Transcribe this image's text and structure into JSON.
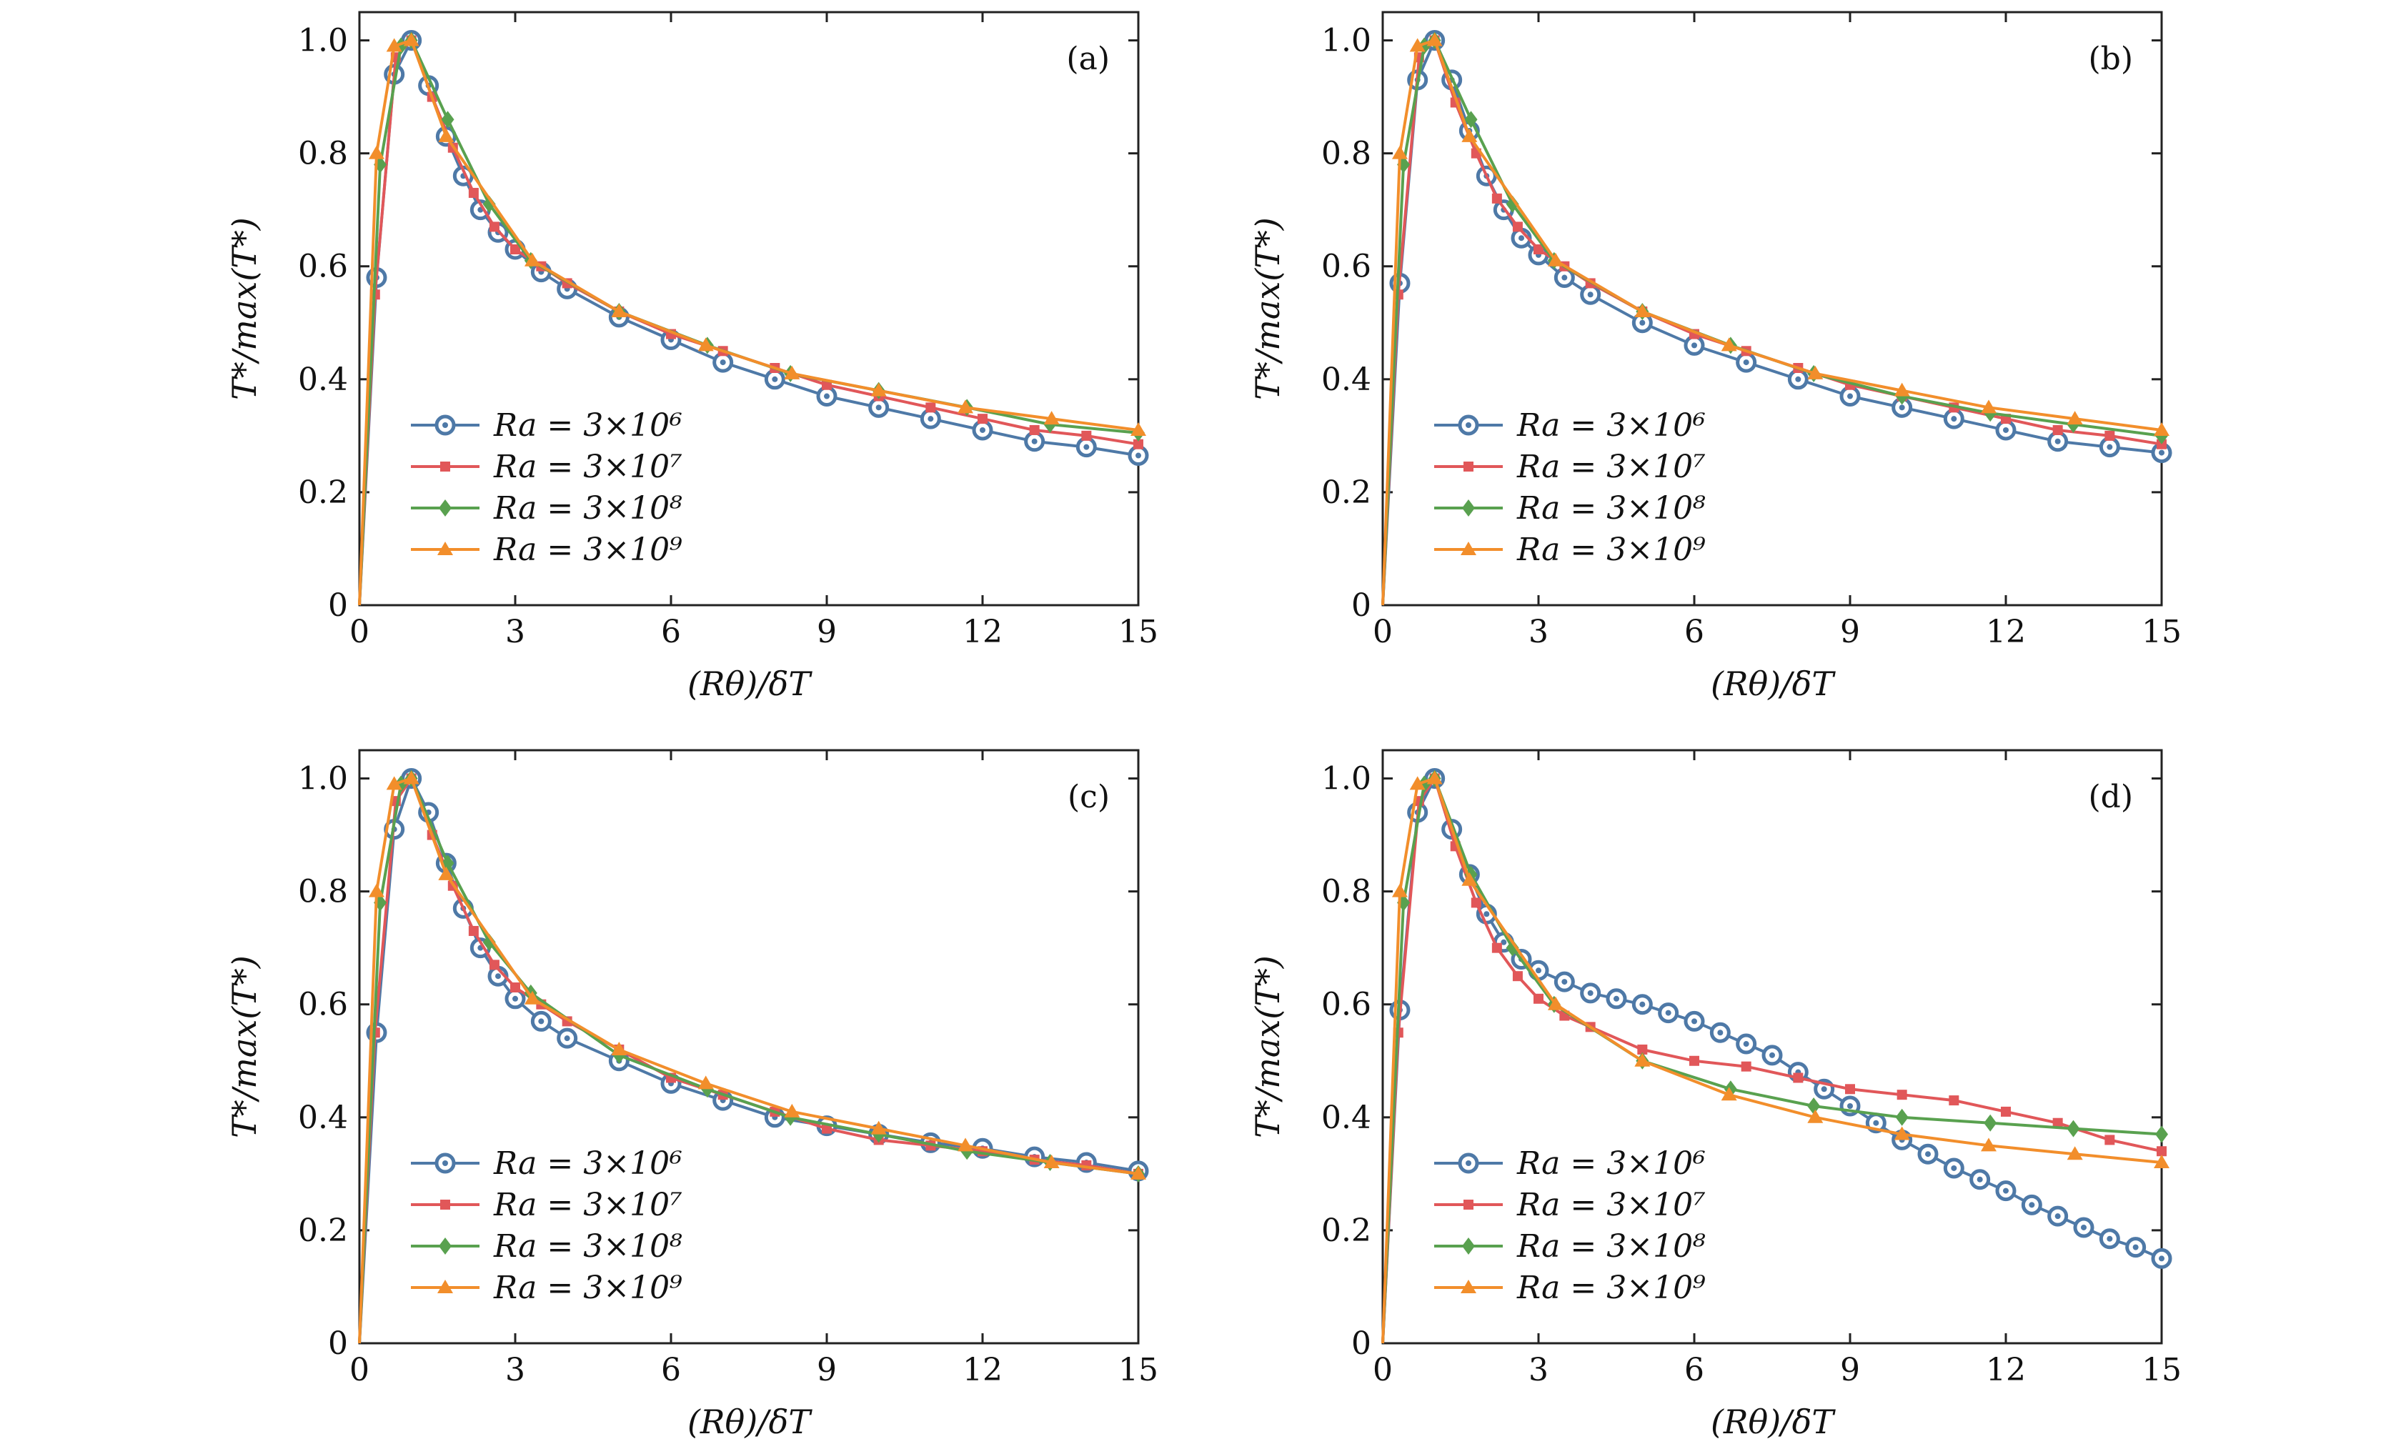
{
  "figure": {
    "labels": {
      "xlabel": "(Rθ)/δT",
      "ylabel": "T*/max(T*)"
    },
    "legend_entries": [
      "Ra = 3×10⁶",
      "Ra = 3×10⁷",
      "Ra = 3×10⁸",
      "Ra = 3×10⁹"
    ]
  },
  "chart_data": [
    {
      "type": "line",
      "panel_label": "(a)",
      "xlabel": "(Rθ)/δT",
      "ylabel": "T*/max(T*)",
      "xlim": [
        0,
        15
      ],
      "ylim": [
        0,
        1.05
      ],
      "xticks": [
        "0",
        "3",
        "6",
        "9",
        "12",
        "15"
      ],
      "yticks": [
        "0",
        "0.2",
        "0.4",
        "0.6",
        "0.8",
        "1.0"
      ],
      "legend_position": "lower-left",
      "grid": false,
      "series": [
        {
          "name": "Ra = 3×10⁶",
          "color": "#4e79a7",
          "marker": "circle",
          "x": [
            0,
            0.33,
            0.67,
            1.0,
            1.33,
            1.67,
            2.0,
            2.33,
            2.67,
            3.0,
            3.5,
            4.0,
            5.0,
            6.0,
            7.0,
            8.0,
            9.0,
            10.0,
            11.0,
            12.0,
            13.0,
            14.0,
            15.0
          ],
          "y": [
            0,
            0.58,
            0.94,
            1.0,
            0.92,
            0.83,
            0.76,
            0.7,
            0.66,
            0.63,
            0.59,
            0.56,
            0.51,
            0.47,
            0.43,
            0.4,
            0.37,
            0.35,
            0.33,
            0.31,
            0.29,
            0.28,
            0.265
          ]
        },
        {
          "name": "Ra = 3×10⁷",
          "color": "#e15759",
          "marker": "square",
          "x": [
            0,
            0.3,
            0.7,
            1.0,
            1.4,
            1.8,
            2.2,
            2.6,
            3.0,
            3.5,
            4.0,
            5.0,
            6.0,
            7.0,
            8.0,
            9.0,
            10.0,
            11.0,
            12.0,
            13.0,
            14.0,
            15.0
          ],
          "y": [
            0,
            0.55,
            0.97,
            1.0,
            0.9,
            0.81,
            0.73,
            0.67,
            0.63,
            0.6,
            0.57,
            0.52,
            0.48,
            0.45,
            0.42,
            0.39,
            0.37,
            0.35,
            0.33,
            0.31,
            0.3,
            0.285
          ]
        },
        {
          "name": "Ra = 3×10⁸",
          "color": "#59a14f",
          "marker": "diamond",
          "x": [
            0,
            0.4,
            0.8,
            1.0,
            1.7,
            2.5,
            3.3,
            5.0,
            6.7,
            8.3,
            10.0,
            11.7,
            13.3,
            15.0
          ],
          "y": [
            0,
            0.78,
            0.99,
            1.0,
            0.86,
            0.71,
            0.61,
            0.52,
            0.46,
            0.41,
            0.38,
            0.35,
            0.32,
            0.305
          ]
        },
        {
          "name": "Ra = 3×10⁹",
          "color": "#f28e2b",
          "marker": "triangle",
          "x": [
            0,
            0.33,
            0.67,
            1.0,
            1.67,
            3.33,
            5.0,
            6.67,
            8.33,
            10.0,
            11.67,
            13.33,
            15.0
          ],
          "y": [
            0,
            0.8,
            0.99,
            1.0,
            0.83,
            0.61,
            0.52,
            0.46,
            0.41,
            0.38,
            0.35,
            0.33,
            0.31
          ]
        }
      ]
    },
    {
      "type": "line",
      "panel_label": "(b)",
      "xlabel": "(Rθ)/δT",
      "ylabel": "T*/max(T*)",
      "xlim": [
        0,
        15
      ],
      "ylim": [
        0,
        1.05
      ],
      "xticks": [
        "0",
        "3",
        "6",
        "9",
        "12",
        "15"
      ],
      "yticks": [
        "0",
        "0.2",
        "0.4",
        "0.6",
        "0.8",
        "1.0"
      ],
      "legend_position": "lower-left",
      "grid": false,
      "series": [
        {
          "name": "Ra = 3×10⁶",
          "color": "#4e79a7",
          "marker": "circle",
          "x": [
            0,
            0.33,
            0.67,
            1.0,
            1.33,
            1.67,
            2.0,
            2.33,
            2.67,
            3.0,
            3.5,
            4.0,
            5.0,
            6.0,
            7.0,
            8.0,
            9.0,
            10.0,
            11.0,
            12.0,
            13.0,
            14.0,
            15.0
          ],
          "y": [
            0,
            0.57,
            0.93,
            1.0,
            0.93,
            0.84,
            0.76,
            0.7,
            0.65,
            0.62,
            0.58,
            0.55,
            0.5,
            0.46,
            0.43,
            0.4,
            0.37,
            0.35,
            0.33,
            0.31,
            0.29,
            0.28,
            0.27
          ]
        },
        {
          "name": "Ra = 3×10⁷",
          "color": "#e15759",
          "marker": "square",
          "x": [
            0,
            0.3,
            0.7,
            1.0,
            1.4,
            1.8,
            2.2,
            2.6,
            3.0,
            3.5,
            4.0,
            5.0,
            6.0,
            7.0,
            8.0,
            9.0,
            10.0,
            11.0,
            12.0,
            13.0,
            14.0,
            15.0
          ],
          "y": [
            0,
            0.55,
            0.97,
            1.0,
            0.89,
            0.8,
            0.72,
            0.67,
            0.63,
            0.6,
            0.57,
            0.52,
            0.48,
            0.45,
            0.42,
            0.39,
            0.37,
            0.35,
            0.33,
            0.31,
            0.3,
            0.285
          ]
        },
        {
          "name": "Ra = 3×10⁸",
          "color": "#59a14f",
          "marker": "diamond",
          "x": [
            0,
            0.4,
            0.8,
            1.0,
            1.7,
            2.5,
            3.3,
            5.0,
            6.7,
            8.3,
            10.0,
            11.7,
            13.3,
            15.0
          ],
          "y": [
            0,
            0.78,
            0.99,
            1.0,
            0.86,
            0.71,
            0.61,
            0.52,
            0.46,
            0.41,
            0.37,
            0.34,
            0.32,
            0.3
          ]
        },
        {
          "name": "Ra = 3×10⁹",
          "color": "#f28e2b",
          "marker": "triangle",
          "x": [
            0,
            0.33,
            0.67,
            1.0,
            1.67,
            3.33,
            5.0,
            6.67,
            8.33,
            10.0,
            11.67,
            13.33,
            15.0
          ],
          "y": [
            0,
            0.8,
            0.99,
            1.0,
            0.83,
            0.61,
            0.52,
            0.46,
            0.41,
            0.38,
            0.35,
            0.33,
            0.31
          ]
        }
      ]
    },
    {
      "type": "line",
      "panel_label": "(c)",
      "xlabel": "(Rθ)/δT",
      "ylabel": "T*/max(T*)",
      "xlim": [
        0,
        15
      ],
      "ylim": [
        0,
        1.05
      ],
      "xticks": [
        "0",
        "3",
        "6",
        "9",
        "12",
        "15"
      ],
      "yticks": [
        "0",
        "0.2",
        "0.4",
        "0.6",
        "0.8",
        "1.0"
      ],
      "legend_position": "lower-left",
      "grid": false,
      "series": [
        {
          "name": "Ra = 3×10⁶",
          "color": "#4e79a7",
          "marker": "circle",
          "x": [
            0,
            0.33,
            0.67,
            1.0,
            1.33,
            1.67,
            2.0,
            2.33,
            2.67,
            3.0,
            3.5,
            4.0,
            5.0,
            6.0,
            7.0,
            8.0,
            9.0,
            10.0,
            11.0,
            12.0,
            13.0,
            14.0,
            15.0
          ],
          "y": [
            0,
            0.55,
            0.91,
            1.0,
            0.94,
            0.85,
            0.77,
            0.7,
            0.65,
            0.61,
            0.57,
            0.54,
            0.5,
            0.46,
            0.43,
            0.4,
            0.385,
            0.37,
            0.355,
            0.345,
            0.33,
            0.32,
            0.305
          ]
        },
        {
          "name": "Ra = 3×10⁷",
          "color": "#e15759",
          "marker": "square",
          "x": [
            0,
            0.3,
            0.7,
            1.0,
            1.4,
            1.8,
            2.2,
            2.6,
            3.0,
            3.5,
            4.0,
            5.0,
            6.0,
            7.0,
            8.0,
            9.0,
            10.0,
            11.0,
            12.0,
            13.0,
            14.0,
            15.0
          ],
          "y": [
            0,
            0.55,
            0.96,
            1.0,
            0.9,
            0.81,
            0.73,
            0.67,
            0.63,
            0.6,
            0.57,
            0.52,
            0.47,
            0.44,
            0.41,
            0.38,
            0.36,
            0.35,
            0.34,
            0.325,
            0.315,
            0.3
          ]
        },
        {
          "name": "Ra = 3×10⁸",
          "color": "#59a14f",
          "marker": "diamond",
          "x": [
            0,
            0.4,
            0.8,
            1.0,
            1.7,
            2.5,
            3.3,
            5.0,
            6.7,
            8.3,
            10.0,
            11.7,
            13.3,
            15.0
          ],
          "y": [
            0,
            0.78,
            0.99,
            1.0,
            0.85,
            0.71,
            0.62,
            0.51,
            0.45,
            0.4,
            0.37,
            0.34,
            0.32,
            0.3
          ]
        },
        {
          "name": "Ra = 3×10⁹",
          "color": "#f28e2b",
          "marker": "triangle",
          "x": [
            0,
            0.33,
            0.67,
            1.0,
            1.67,
            3.33,
            5.0,
            6.67,
            8.33,
            10.0,
            11.67,
            13.33,
            15.0
          ],
          "y": [
            0,
            0.8,
            0.99,
            1.0,
            0.83,
            0.61,
            0.52,
            0.46,
            0.41,
            0.38,
            0.35,
            0.32,
            0.3
          ]
        }
      ]
    },
    {
      "type": "line",
      "panel_label": "(d)",
      "xlabel": "(Rθ)/δT",
      "ylabel": "T*/max(T*)",
      "xlim": [
        0,
        15
      ],
      "ylim": [
        0,
        1.05
      ],
      "xticks": [
        "0",
        "3",
        "6",
        "9",
        "12",
        "15"
      ],
      "yticks": [
        "0",
        "0.2",
        "0.4",
        "0.6",
        "0.8",
        "1.0"
      ],
      "legend_position": "lower-left",
      "grid": false,
      "series": [
        {
          "name": "Ra = 3×10⁶",
          "color": "#4e79a7",
          "marker": "circle",
          "x": [
            0,
            0.33,
            0.67,
            1.0,
            1.33,
            1.67,
            2.0,
            2.33,
            2.67,
            3.0,
            3.5,
            4.0,
            4.5,
            5.0,
            5.5,
            6.0,
            6.5,
            7.0,
            7.5,
            8.0,
            8.5,
            9.0,
            9.5,
            10.0,
            10.5,
            11.0,
            11.5,
            12.0,
            12.5,
            13.0,
            13.5,
            14.0,
            14.5,
            15.0
          ],
          "y": [
            0,
            0.59,
            0.94,
            1.0,
            0.91,
            0.83,
            0.76,
            0.71,
            0.68,
            0.66,
            0.64,
            0.62,
            0.61,
            0.6,
            0.585,
            0.57,
            0.55,
            0.53,
            0.51,
            0.48,
            0.45,
            0.42,
            0.39,
            0.36,
            0.335,
            0.31,
            0.29,
            0.27,
            0.245,
            0.225,
            0.205,
            0.185,
            0.17,
            0.15
          ]
        },
        {
          "name": "Ra = 3×10⁷",
          "color": "#e15759",
          "marker": "square",
          "x": [
            0,
            0.3,
            0.7,
            1.0,
            1.4,
            1.8,
            2.2,
            2.6,
            3.0,
            3.5,
            4.0,
            5.0,
            6.0,
            7.0,
            8.0,
            9.0,
            10.0,
            11.0,
            12.0,
            13.0,
            14.0,
            15.0
          ],
          "y": [
            0,
            0.55,
            0.96,
            1.0,
            0.88,
            0.78,
            0.7,
            0.65,
            0.61,
            0.58,
            0.56,
            0.52,
            0.5,
            0.49,
            0.47,
            0.45,
            0.44,
            0.43,
            0.41,
            0.39,
            0.36,
            0.34
          ]
        },
        {
          "name": "Ra = 3×10⁸",
          "color": "#59a14f",
          "marker": "diamond",
          "x": [
            0,
            0.4,
            0.8,
            1.0,
            1.7,
            2.5,
            3.3,
            5.0,
            6.7,
            8.3,
            10.0,
            11.7,
            13.3,
            15.0
          ],
          "y": [
            0,
            0.78,
            0.99,
            1.0,
            0.83,
            0.7,
            0.6,
            0.5,
            0.45,
            0.42,
            0.4,
            0.39,
            0.38,
            0.37
          ]
        },
        {
          "name": "Ra = 3×10⁹",
          "color": "#f28e2b",
          "marker": "triangle",
          "x": [
            0,
            0.33,
            0.67,
            1.0,
            1.67,
            3.33,
            5.0,
            6.67,
            8.33,
            10.0,
            11.67,
            13.33,
            15.0
          ],
          "y": [
            0,
            0.8,
            0.99,
            1.0,
            0.82,
            0.6,
            0.5,
            0.44,
            0.4,
            0.37,
            0.35,
            0.335,
            0.32
          ]
        }
      ]
    }
  ]
}
